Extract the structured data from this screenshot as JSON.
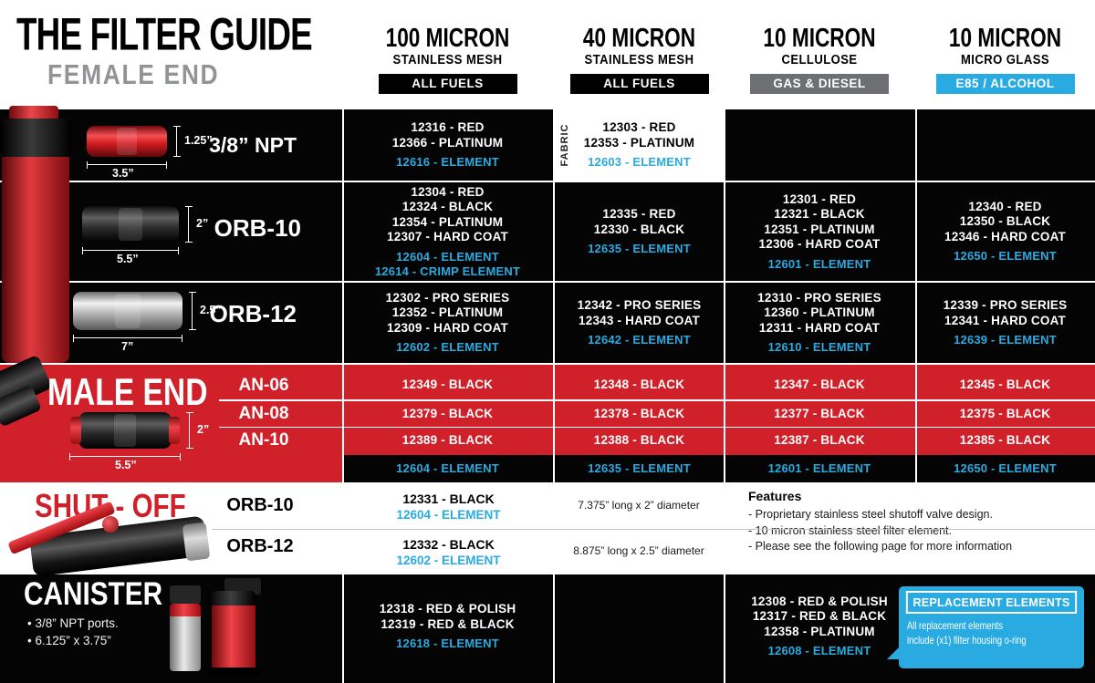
{
  "page": {
    "title": "THE FILTER GUIDE",
    "subtitle": "FEMALE END"
  },
  "colors": {
    "red": "#d0202a",
    "element_blue": "#29abe2",
    "badge_black": "#000000",
    "badge_gray": "#6e6f72"
  },
  "columns": [
    {
      "micron": "100 MICRON",
      "media": "STAINLESS MESH",
      "badge": "ALL FUELS",
      "badge_color": "#000000"
    },
    {
      "micron": "40 MICRON",
      "media": "STAINLESS MESH",
      "badge": "ALL FUELS",
      "badge_color": "#000000"
    },
    {
      "micron": "10 MICRON",
      "media": "CELLULOSE",
      "badge": "GAS & DIESEL",
      "badge_color": "#6e6f72"
    },
    {
      "micron": "10 MICRON",
      "media": "MICRO GLASS",
      "badge": "E85 / ALCOHOL",
      "badge_color": "#29abe2"
    }
  ],
  "female_end": {
    "rows": [
      {
        "label": "3/8” NPT",
        "diameter": "1.25”",
        "length": "3.5”",
        "cells": [
          {
            "parts": [
              "12316 - RED",
              "12366 - PLATINUM"
            ],
            "elements": [
              "12616 - ELEMENT"
            ]
          },
          {
            "fabric_label": "FABRIC",
            "parts": [
              "12303 - RED",
              "12353 - PLATINUM"
            ],
            "elements": [
              "12603 - ELEMENT"
            ]
          },
          {
            "parts": [],
            "elements": []
          },
          {
            "parts": [],
            "elements": []
          }
        ]
      },
      {
        "label": "ORB-10",
        "diameter": "2”",
        "length": "5.5”",
        "cells": [
          {
            "parts": [
              "12304 - RED",
              "12324 - BLACK",
              "12354 - PLATINUM",
              "12307 - HARD COAT"
            ],
            "elements": [
              "12604 - ELEMENT",
              "12614 - CRIMP ELEMENT"
            ]
          },
          {
            "parts": [
              "12335 - RED",
              "12330 - BLACK"
            ],
            "elements": [
              "12635 - ELEMENT"
            ]
          },
          {
            "parts": [
              "12301 - RED",
              "12321 - BLACK",
              "12351 - PLATINUM",
              "12306 - HARD COAT"
            ],
            "elements": [
              "12601 - ELEMENT"
            ]
          },
          {
            "parts": [
              "12340 - RED",
              "12350 - BLACK",
              "12346 - HARD COAT"
            ],
            "elements": [
              "12650 - ELEMENT"
            ]
          }
        ]
      },
      {
        "label": "ORB-12",
        "diameter": "2.5”",
        "length": "7”",
        "cells": [
          {
            "parts": [
              "12302 - PRO SERIES",
              "12352 - PLATINUM",
              "12309 - HARD COAT"
            ],
            "elements": [
              "12602 - ELEMENT"
            ]
          },
          {
            "parts": [
              "12342 - PRO SERIES",
              "12343 - HARD COAT"
            ],
            "elements": [
              "12642 - ELEMENT"
            ]
          },
          {
            "parts": [
              "12310 - PRO SERIES",
              "12360 - PLATINUM",
              "12311 - HARD COAT"
            ],
            "elements": [
              "12610 - ELEMENT"
            ]
          },
          {
            "parts": [
              "12339 - PRO SERIES",
              "12341 - HARD COAT"
            ],
            "elements": [
              "12639 - ELEMENT"
            ]
          }
        ]
      }
    ]
  },
  "male_end": {
    "title": "MALE END",
    "diameter": "2”",
    "length": "5.5”",
    "rows": [
      {
        "label": "AN-06",
        "cells": [
          "12349 - BLACK",
          "12348 - BLACK",
          "12347 - BLACK",
          "12345 - BLACK"
        ]
      },
      {
        "label": "AN-08",
        "cells": [
          "12379 - BLACK",
          "12378 - BLACK",
          "12377 - BLACK",
          "12375 - BLACK"
        ]
      },
      {
        "label": "AN-10",
        "cells": [
          "12389 - BLACK",
          "12388 - BLACK",
          "12387 - BLACK",
          "12385 - BLACK"
        ]
      }
    ],
    "element_row": [
      "12604 - ELEMENT",
      "12635 - ELEMENT",
      "12601 - ELEMENT",
      "12650 - ELEMENT"
    ]
  },
  "shut_off": {
    "title": "SHUT - OFF",
    "rows": [
      {
        "label": "ORB-10",
        "part": "12331 - BLACK",
        "element": "12604 - ELEMENT",
        "dimensions": "7.375” long x 2” diameter"
      },
      {
        "label": "ORB-12",
        "part": "12332 - BLACK",
        "element": "12602 - ELEMENT",
        "dimensions": "8.875” long x 2.5” diameter"
      }
    ],
    "features": {
      "title": "Features",
      "items": [
        "- Proprietary stainless steel shutoff valve design.",
        "- 10 micron stainless steel filter element.",
        "- Please see the following page for more information"
      ]
    }
  },
  "canister": {
    "title": "CANISTER",
    "bullets": [
      "• 3/8” NPT ports.",
      "• 6.125” x 3.75”"
    ],
    "cells": [
      {
        "col": 0,
        "parts": [
          "12318 - RED & POLISH",
          "12319 - RED & BLACK"
        ],
        "elements": [
          "12618 - ELEMENT"
        ]
      },
      {
        "col": 2,
        "parts": [
          "12308 - RED & POLISH",
          "12317 - RED & BLACK",
          "12358 - PLATINUM"
        ],
        "elements": [
          "12608 - ELEMENT"
        ]
      }
    ],
    "replacement": {
      "title": "REPLACEMENT ELEMENTS",
      "body_lines": [
        "All replacement elements",
        "include (x1) filter housing o-ring"
      ]
    }
  }
}
